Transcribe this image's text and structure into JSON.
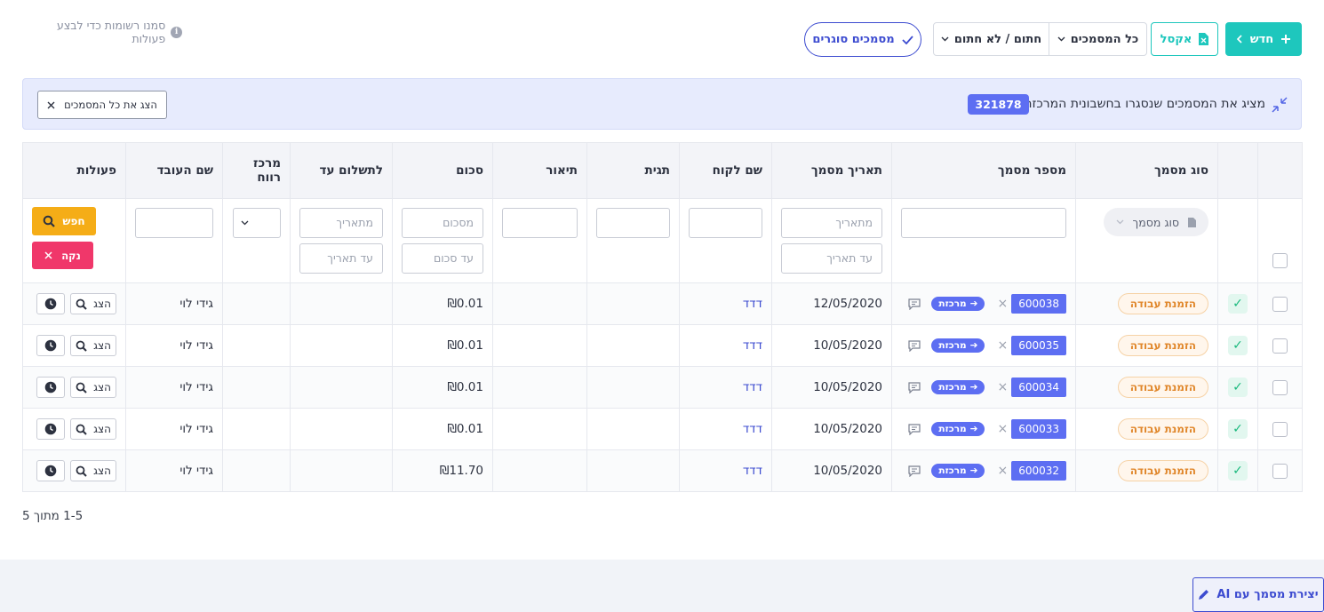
{
  "toolbar": {
    "new_label": "חדש",
    "excel_label": "אקסל",
    "all_docs_label": "כל המסמכים",
    "signed_label": "חתום / לא חתום",
    "closing_docs_label": "מסמכים סוגרים",
    "hint_text": "סמנו רשומות כדי לבצע פעולות"
  },
  "banner": {
    "text": "מציג את המסמכים שנסגרו בחשבונית המרכזת",
    "number": "321878",
    "show_all_label": "הצג את כל המסמכים"
  },
  "table": {
    "headers": {
      "doc_type": "סוג מסמך",
      "doc_number": "מספר מסמך",
      "doc_date": "תאריך מסמך",
      "customer": "שם לקוח",
      "tag": "תגית",
      "description": "תיאור",
      "amount": "סכום",
      "due": "לתשלום עד",
      "profit_center": "מרכז רווח",
      "employee": "שם העובד",
      "actions": "פעולות"
    },
    "filters": {
      "doc_type_placeholder": "סוג מסמך",
      "date_from": "מתאריך",
      "date_to": "עד תאריך",
      "amount_from": "מסכום",
      "amount_to": "עד סכום",
      "due_from": "מתאריך",
      "due_to": "עד תאריך",
      "search_label": "חפש",
      "clear_label": "נקה"
    },
    "rows": [
      {
        "doc_type": "הזמנת עבודה",
        "number": "600038",
        "center_tag": "מרכזת",
        "date": "12/05/2020",
        "customer": "דדד",
        "amount": "₪0.01",
        "employee": "גידי לוי",
        "view": "הצג"
      },
      {
        "doc_type": "הזמנת עבודה",
        "number": "600035",
        "center_tag": "מרכזת",
        "date": "10/05/2020",
        "customer": "דדד",
        "amount": "₪0.01",
        "employee": "גידי לוי",
        "view": "הצג"
      },
      {
        "doc_type": "הזמנת עבודה",
        "number": "600034",
        "center_tag": "מרכזת",
        "date": "10/05/2020",
        "customer": "דדד",
        "amount": "₪0.01",
        "employee": "גידי לוי",
        "view": "הצג"
      },
      {
        "doc_type": "הזמנת עבודה",
        "number": "600033",
        "center_tag": "מרכזת",
        "date": "10/05/2020",
        "customer": "דדד",
        "amount": "₪0.01",
        "employee": "גידי לוי",
        "view": "הצג"
      },
      {
        "doc_type": "הזמנת עבודה",
        "number": "600032",
        "center_tag": "מרכזת",
        "date": "10/05/2020",
        "customer": "דדד",
        "amount": "₪11.70",
        "employee": "גידי לוי",
        "view": "הצג"
      }
    ]
  },
  "pager": {
    "text": "1-5 מתוך 5"
  },
  "ai_button": {
    "label": "יצירת מסמך עם AI"
  },
  "colors": {
    "teal": "#1ec7bd",
    "indigo": "#5d6ef2",
    "orange": "#f5ad17",
    "pink": "#f0376a"
  }
}
